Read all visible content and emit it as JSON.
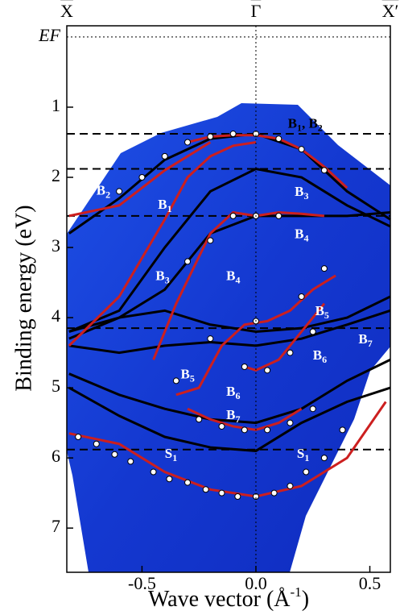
{
  "chart_data": {
    "type": "band-structure",
    "xlabel": "Wave vector (Å",
    "xlabel_sup": "-1",
    "xlabel_end": ")",
    "ylabel": "Binding energy (eV)",
    "xlim": [
      -0.83,
      0.59
    ],
    "ylim": [
      7.63,
      -0.16
    ],
    "xticks": [
      -0.5,
      {
        "value": 0,
        "label": "0.0"
      },
      0.5
    ],
    "yticks": [
      {
        "value": 0,
        "label": "EF"
      },
      1,
      2,
      3,
      4,
      5,
      6,
      7
    ],
    "top_ticks": [
      {
        "value": -0.83,
        "label": "X"
      },
      {
        "value": 0,
        "label": "Γ"
      },
      {
        "value": 0.59,
        "label": "X′"
      }
    ],
    "hlines": [
      1.38,
      1.88,
      2.55,
      4.15,
      5.88
    ],
    "series": [
      {
        "color": "#000000",
        "x": [
          -0.82,
          -0.6,
          -0.4,
          -0.2,
          0,
          0.2,
          0.4,
          0.59
        ],
        "values": [
          2.8,
          2.3,
          1.75,
          1.45,
          1.38,
          1.6,
          2.2,
          2.6
        ]
      },
      {
        "color": "#000000",
        "x": [
          -0.82,
          -0.6,
          -0.4,
          -0.2,
          0,
          0.2,
          0.4,
          0.59
        ],
        "values": [
          4.2,
          3.9,
          3.0,
          2.2,
          1.88,
          2.0,
          2.4,
          2.7
        ]
      },
      {
        "color": "#000000",
        "x": [
          -0.82,
          -0.6,
          -0.4,
          -0.2,
          0,
          0.2,
          0.4,
          0.59
        ],
        "values": [
          4.2,
          4.0,
          3.6,
          2.8,
          2.55,
          2.55,
          2.55,
          2.5
        ]
      },
      {
        "color": "#000000",
        "x": [
          -0.82,
          -0.6,
          -0.4,
          -0.2,
          0,
          0.2,
          0.4,
          0.59
        ],
        "values": [
          4.3,
          4.0,
          3.9,
          4.1,
          4.2,
          4.15,
          4.0,
          3.7
        ]
      },
      {
        "color": "#000000",
        "x": [
          -0.82,
          -0.6,
          -0.4,
          -0.2,
          0,
          0.2,
          0.4,
          0.59
        ],
        "values": [
          4.4,
          4.5,
          4.4,
          4.35,
          4.4,
          4.3,
          4.1,
          3.9
        ]
      },
      {
        "color": "#000000",
        "x": [
          -0.82,
          -0.6,
          -0.4,
          -0.2,
          0,
          0.2,
          0.4,
          0.59
        ],
        "values": [
          4.8,
          5.1,
          5.3,
          5.45,
          5.5,
          5.3,
          4.9,
          4.6
        ]
      },
      {
        "color": "#000000",
        "x": [
          -0.82,
          -0.6,
          -0.4,
          -0.2,
          0,
          0.2,
          0.4,
          0.59
        ],
        "values": [
          5.0,
          5.4,
          5.7,
          5.85,
          5.9,
          5.5,
          5.2,
          5.0
        ]
      },
      {
        "color": "#cc1f1f",
        "x": [
          -0.82,
          -0.6,
          -0.4,
          -0.2,
          0,
          0.2,
          0.4,
          0.57
        ],
        "values": [
          5.65,
          5.8,
          6.2,
          6.45,
          6.55,
          6.4,
          6.0,
          5.2
        ]
      },
      {
        "color": "#cc1f1f",
        "x": [
          -0.3,
          -0.2,
          -0.1,
          0,
          0.1,
          0.2,
          0.3,
          0.4
        ],
        "values": [
          1.5,
          1.42,
          1.4,
          1.4,
          1.45,
          1.6,
          1.85,
          2.15
        ]
      },
      {
        "color": "#cc1f1f",
        "x": [
          -0.82,
          -0.6,
          -0.4,
          -0.3,
          -0.2,
          -0.1,
          0
        ],
        "values": [
          4.4,
          3.7,
          2.6,
          2.0,
          1.7,
          1.55,
          1.5
        ]
      },
      {
        "color": "#cc1f1f",
        "x": [
          -0.82,
          -0.6,
          -0.4,
          -0.2
        ],
        "values": [
          2.55,
          2.4,
          1.9,
          1.5
        ]
      },
      {
        "color": "#cc1f1f",
        "x": [
          -0.45,
          -0.35,
          -0.2,
          -0.1,
          0,
          0.1,
          0.2,
          0.3
        ],
        "values": [
          4.6,
          3.8,
          2.8,
          2.5,
          2.55,
          2.5,
          2.52,
          2.55
        ]
      },
      {
        "color": "#cc1f1f",
        "x": [
          -0.35,
          -0.25,
          -0.15,
          -0.05,
          0.05,
          0.15,
          0.25,
          0.35
        ],
        "values": [
          5.1,
          5.0,
          4.4,
          4.1,
          4.05,
          3.9,
          3.6,
          3.4
        ]
      },
      {
        "color": "#cc1f1f",
        "x": [
          -0.3,
          -0.2,
          -0.1,
          0,
          0.1,
          0.2
        ],
        "values": [
          5.3,
          5.45,
          5.55,
          5.6,
          5.5,
          5.3
        ]
      },
      {
        "color": "#cc1f1f",
        "x": [
          -0.05,
          0,
          0.1,
          0.2,
          0.3
        ],
        "values": [
          4.7,
          4.75,
          4.6,
          4.2,
          3.8
        ]
      }
    ],
    "points": {
      "x": [
        -0.78,
        -0.7,
        -0.62,
        -0.55,
        -0.45,
        -0.38,
        -0.3,
        -0.22,
        -0.15,
        -0.08,
        0,
        0.08,
        0.15,
        0.22,
        0.3,
        0.38,
        -0.6,
        -0.5,
        -0.4,
        -0.3,
        -0.2,
        -0.1,
        0,
        0.1,
        0.2,
        0.3,
        -0.25,
        -0.15,
        -0.05,
        0.05,
        0.15,
        0.25,
        -0.3,
        -0.2,
        -0.1,
        0,
        0.1,
        -0.35,
        -0.2,
        0,
        0.2,
        0.3,
        -0.05,
        0.05,
        0.15,
        0.25
      ],
      "values": [
        5.7,
        5.8,
        5.95,
        6.05,
        6.2,
        6.3,
        6.35,
        6.45,
        6.5,
        6.55,
        6.55,
        6.5,
        6.4,
        6.2,
        6.0,
        5.6,
        2.2,
        2.0,
        1.7,
        1.5,
        1.42,
        1.38,
        1.38,
        1.45,
        1.6,
        1.9,
        5.45,
        5.55,
        5.6,
        5.6,
        5.5,
        5.3,
        3.2,
        2.9,
        2.55,
        2.55,
        2.55,
        4.9,
        4.3,
        4.05,
        3.7,
        3.3,
        4.7,
        4.75,
        4.5,
        4.2
      ]
    },
    "annotations": [
      {
        "text": "B",
        "sub": "1",
        "after": ", B",
        "sub2": "2",
        "x": 0.14,
        "y": 1.25
      },
      {
        "text": "B",
        "sub": "2",
        "x": -0.7,
        "y": 2.2
      },
      {
        "text": "B",
        "sub": "1",
        "x": -0.43,
        "y": 2.4
      },
      {
        "text": "B",
        "sub": "3",
        "x": 0.17,
        "y": 2.22
      },
      {
        "text": "B",
        "sub": "4",
        "x": 0.17,
        "y": 2.82
      },
      {
        "text": "B",
        "sub": "3",
        "x": -0.44,
        "y": 3.42
      },
      {
        "text": "B",
        "sub": "4",
        "x": -0.13,
        "y": 3.42
      },
      {
        "text": "B",
        "sub": "5",
        "x": 0.26,
        "y": 3.92
      },
      {
        "text": "B",
        "sub": "6",
        "x": 0.25,
        "y": 4.55
      },
      {
        "text": "B",
        "sub": "7",
        "x": 0.45,
        "y": 4.32
      },
      {
        "text": "B",
        "sub": "5",
        "x": -0.33,
        "y": 4.82
      },
      {
        "text": "B",
        "sub": "6",
        "x": -0.13,
        "y": 5.07
      },
      {
        "text": "B",
        "sub": "7",
        "x": -0.13,
        "y": 5.4
      },
      {
        "text": "S",
        "sub": "1",
        "x": -0.4,
        "y": 5.95
      },
      {
        "text": "S",
        "sub": "1",
        "x": 0.18,
        "y": 5.95
      }
    ]
  }
}
